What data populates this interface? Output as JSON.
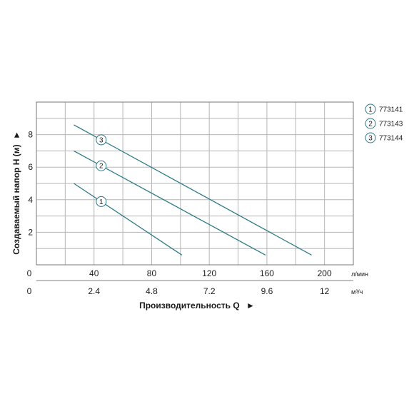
{
  "chart_data": {
    "type": "line",
    "ylabel": "Создаваемый напор H (м)",
    "xlabel": "Производительность Q",
    "x_unit_primary": "л/мин",
    "x_unit_secondary": "м³/ч",
    "xlim": [
      0,
      220
    ],
    "ylim": [
      0,
      10
    ],
    "x_ticks_primary": [
      "0",
      "40",
      "80",
      "120",
      "160",
      "200"
    ],
    "x_tick_values_primary": [
      0,
      40,
      80,
      120,
      160,
      200
    ],
    "x_ticks_secondary": [
      "0",
      "2.4",
      "4.8",
      "7.2",
      "9.6",
      "12"
    ],
    "x_tick_values_secondary": [
      0,
      40,
      80,
      120,
      160,
      200
    ],
    "y_ticks": [
      "2",
      "4",
      "6",
      "8"
    ],
    "y_tick_values": [
      2,
      4,
      6,
      8
    ],
    "y_arrow": "►",
    "x_arrow": "►",
    "grid": true,
    "legend_position": "top-right",
    "color": "#2b7b8a",
    "series": [
      {
        "name": "773141",
        "marker": "1",
        "x": [
          26,
          101
        ],
        "y": [
          5.0,
          0.6
        ],
        "marker_at": 45
      },
      {
        "name": "773143",
        "marker": "2",
        "x": [
          26,
          159
        ],
        "y": [
          7.0,
          0.6
        ],
        "marker_at": 45
      },
      {
        "name": "773144",
        "marker": "3",
        "x": [
          26,
          191
        ],
        "y": [
          8.6,
          0.6
        ],
        "marker_at": 45
      }
    ]
  }
}
